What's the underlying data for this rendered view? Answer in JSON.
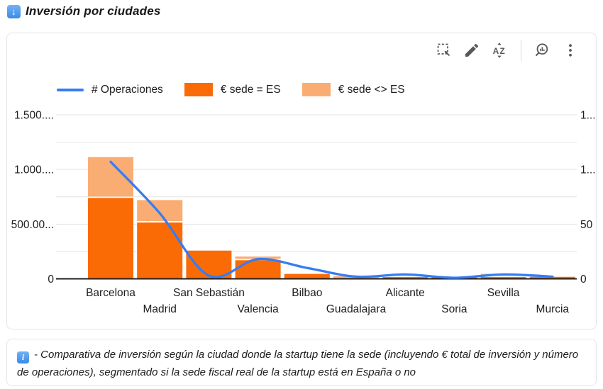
{
  "page": {
    "title": "Inversión por ciudades"
  },
  "toolbar": {
    "icons": [
      "marquee-select-icon",
      "edit-pencil-icon",
      "sort-az-icon",
      "zoom-insights-icon",
      "kebab-menu-icon"
    ]
  },
  "legend": {
    "items": [
      {
        "label": "# Operaciones",
        "swatch": "line",
        "color": "#377CF4"
      },
      {
        "label": "€ sede = ES",
        "swatch": "box",
        "color": "#FA6B05"
      },
      {
        "label": "€ sede <> ES",
        "swatch": "box",
        "color": "#FAAD73"
      }
    ]
  },
  "chart_data": {
    "type": "combo-stacked-bar-line",
    "title": "Inversión por ciudades",
    "categories": [
      "Barcelona",
      "Madrid",
      "San Sebastián",
      "Valencia",
      "Bilbao",
      "Guadalajara",
      "Alicante",
      "Soria",
      "Sevilla",
      "Murcia"
    ],
    "series": [
      {
        "name": "# Operaciones",
        "type": "line",
        "axis": "right",
        "color": "#377CF4",
        "values": [
          107,
          60,
          3,
          18,
          10,
          2,
          4,
          1,
          4,
          2
        ]
      },
      {
        "name": "€ sede = ES",
        "type": "bar",
        "axis": "left",
        "color": "#FA6B05",
        "values": [
          740000,
          515000,
          258000,
          170000,
          45000,
          0,
          14000,
          5000,
          10000,
          18000
        ]
      },
      {
        "name": "€ sede <> ES",
        "type": "bar",
        "axis": "left",
        "color": "#FAAD73",
        "values": [
          360000,
          192000,
          0,
          21000,
          0,
          24000,
          0,
          0,
          5000,
          0
        ]
      }
    ],
    "left_axis": {
      "max": 1500000,
      "minor_step": 250000,
      "ticks": [
        0,
        500000,
        1000000,
        1500000
      ],
      "tick_labels": [
        "0",
        "500.00...",
        "1.000....",
        "1.500...."
      ]
    },
    "right_axis": {
      "max": 150,
      "ticks": [
        0,
        50,
        100,
        150
      ],
      "tick_labels": [
        "0",
        "50",
        "1...",
        "1..."
      ]
    },
    "grid": true,
    "legend_position": "top-left",
    "colors": {
      "line": "#377CF4",
      "bar_es": "#FA6B05",
      "bar_non_es": "#FAAD73",
      "gridline": "#e3e3e3",
      "axis_line": "#1f1f1f",
      "text": "#1d1d1f"
    }
  },
  "note": {
    "text": "- Comparativa de inversión según la ciudad donde la startup tiene la sede (incluyendo € total de inversión y número de operaciones), segmentado si la sede fiscal real de la startup está en España o no"
  }
}
